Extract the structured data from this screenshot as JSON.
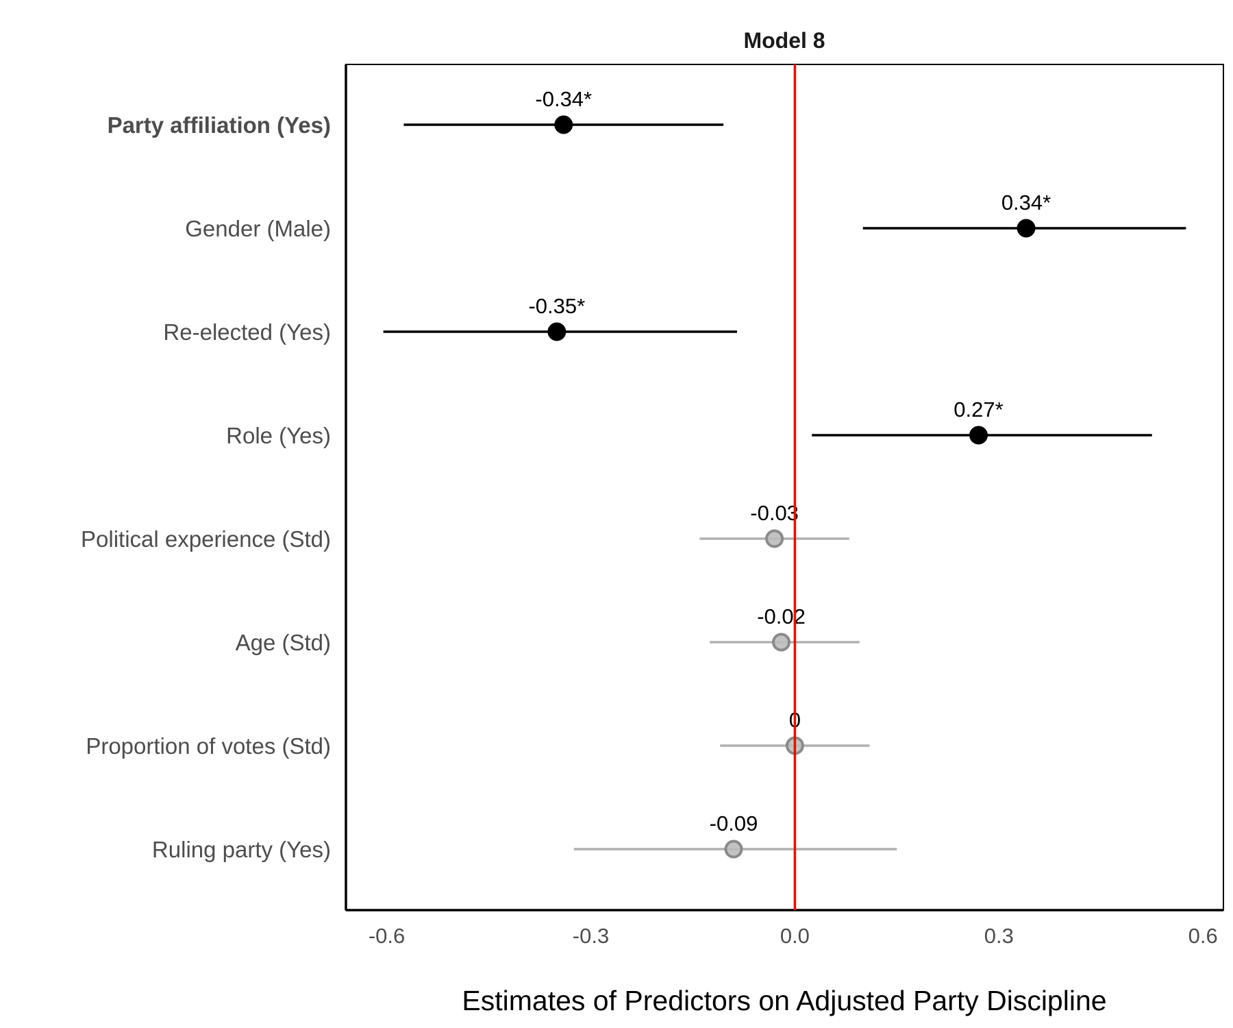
{
  "chart_data": {
    "type": "scatter",
    "subtype": "coefficient-plot",
    "title": "Model 8",
    "xlabel": "Estimates of Predictors on Adjusted Party Discipline",
    "ylabel": "",
    "xlim": [
      -0.66,
      0.63
    ],
    "xticks": [
      -0.6,
      -0.3,
      0.0,
      0.3,
      0.6
    ],
    "xtick_labels": [
      "-0.6",
      "-0.3",
      "0.0",
      "0.3",
      "0.6"
    ],
    "reference_line": {
      "x": 0,
      "color": "#ff0000"
    },
    "grid": false,
    "colors": {
      "significant": "#000000",
      "nonsignificant": "#9e9e9e"
    },
    "predictors": [
      {
        "label": "Party affiliation (Yes)",
        "bold": true,
        "estimate": -0.34,
        "ci": [
          -0.575,
          -0.105
        ],
        "display": "-0.34*",
        "significant": true
      },
      {
        "label": "Gender (Male)",
        "bold": false,
        "estimate": 0.34,
        "ci": [
          0.1,
          0.575
        ],
        "display": "0.34*",
        "significant": true
      },
      {
        "label": "Re-elected (Yes)",
        "bold": false,
        "estimate": -0.35,
        "ci": [
          -0.605,
          -0.085
        ],
        "display": "-0.35*",
        "significant": true
      },
      {
        "label": "Role (Yes)",
        "bold": false,
        "estimate": 0.27,
        "ci": [
          0.025,
          0.525
        ],
        "display": "0.27*",
        "significant": true
      },
      {
        "label": "Political experience (Std)",
        "bold": false,
        "estimate": -0.03,
        "ci": [
          -0.14,
          0.08
        ],
        "display": "-0.03",
        "significant": false
      },
      {
        "label": "Age (Std)",
        "bold": false,
        "estimate": -0.02,
        "ci": [
          -0.125,
          0.095
        ],
        "display": "-0.02",
        "significant": false
      },
      {
        "label": "Proportion of votes (Std)",
        "bold": false,
        "estimate": 0.0,
        "ci": [
          -0.11,
          0.11
        ],
        "display": "0",
        "significant": false
      },
      {
        "label": "Ruling party (Yes)",
        "bold": false,
        "estimate": -0.09,
        "ci": [
          -0.325,
          0.15
        ],
        "display": "-0.09",
        "significant": false
      }
    ]
  }
}
